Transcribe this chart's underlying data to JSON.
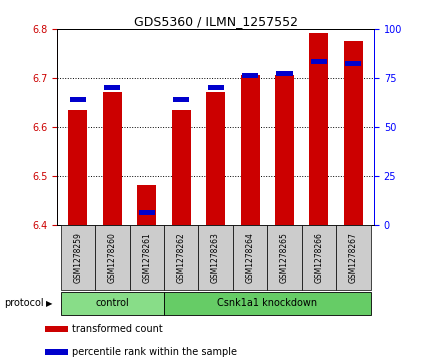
{
  "title": "GDS5360 / ILMN_1257552",
  "samples": [
    "GSM1278259",
    "GSM1278260",
    "GSM1278261",
    "GSM1278262",
    "GSM1278263",
    "GSM1278264",
    "GSM1278265",
    "GSM1278266",
    "GSM1278267"
  ],
  "red_values": [
    6.634,
    6.672,
    6.481,
    6.634,
    6.672,
    6.707,
    6.707,
    6.791,
    6.775
  ],
  "blue_percentiles": [
    63,
    69,
    5,
    63,
    69,
    75,
    76,
    82,
    81
  ],
  "ylim": [
    6.4,
    6.8
  ],
  "ylim_right": [
    0,
    100
  ],
  "yticks_left": [
    6.4,
    6.5,
    6.6,
    6.7,
    6.8
  ],
  "yticks_right": [
    0,
    25,
    50,
    75,
    100
  ],
  "ylabel_left_color": "#cc0000",
  "ylabel_right_color": "#0000ff",
  "bar_color": "#cc0000",
  "dot_color": "#0000cc",
  "groups": [
    {
      "label": "control",
      "start": 0,
      "end": 2,
      "color": "#88dd88"
    },
    {
      "label": "Csnk1a1 knockdown",
      "start": 3,
      "end": 8,
      "color": "#66cc66"
    }
  ],
  "protocol_label": "protocol",
  "sample_box_color": "#cccccc",
  "legend_items": [
    {
      "color": "#cc0000",
      "label": "transformed count"
    },
    {
      "color": "#0000cc",
      "label": "percentile rank within the sample"
    }
  ],
  "bar_width": 0.55,
  "background_color": "#ffffff",
  "plot_bg_color": "#ffffff",
  "grid_color": "#000000"
}
